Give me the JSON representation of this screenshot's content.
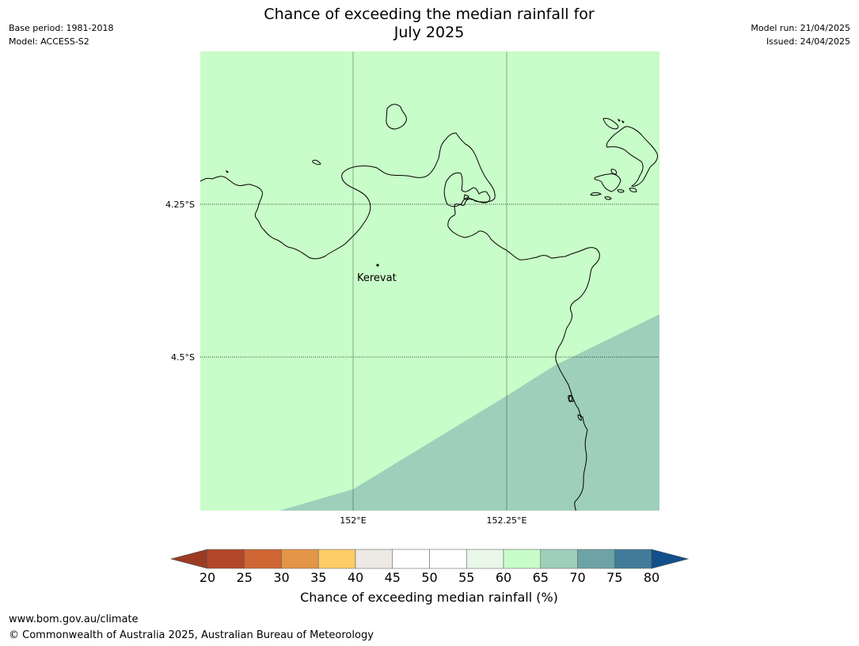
{
  "header": {
    "base_period": "Base period: 1981-2018",
    "model": "Model: ACCESS-S2",
    "model_run": "Model run: 21/04/2025",
    "issued": "Issued: 24/04/2025",
    "title_line1": "Chance of exceeding the median rainfall for",
    "title_line2": "July 2025"
  },
  "map": {
    "background_category": "60-65",
    "lat_labels": [
      "4.25°S",
      "4.5°S"
    ],
    "lon_labels": [
      "152°E",
      "152.25°E"
    ],
    "places": [
      {
        "name": "Kerevat"
      }
    ],
    "regions": [
      {
        "name": "60-65",
        "color": "#c8fcc8"
      },
      {
        "name": "65-70",
        "color": "#9ecfba"
      }
    ]
  },
  "colorbar": {
    "label": "Chance of exceeding median rainfall (%)",
    "ticks": [
      "20",
      "25",
      "30",
      "35",
      "40",
      "45",
      "50",
      "55",
      "60",
      "65",
      "70",
      "75",
      "80"
    ],
    "under_color": "#9b3b24",
    "over_color": "#12508b",
    "colors": [
      "#b3472a",
      "#d06633",
      "#e39548",
      "#fecc67",
      "#ede9e4",
      "#ffffff",
      "#ffffff",
      "#e9f7e9",
      "#c8fcc8",
      "#9ecfba",
      "#6ea3a6",
      "#407c9a"
    ]
  },
  "footer": {
    "url": "www.bom.gov.au/climate",
    "copyright": "© Commonwealth of Australia 2025, Australian Bureau of Meteorology"
  }
}
